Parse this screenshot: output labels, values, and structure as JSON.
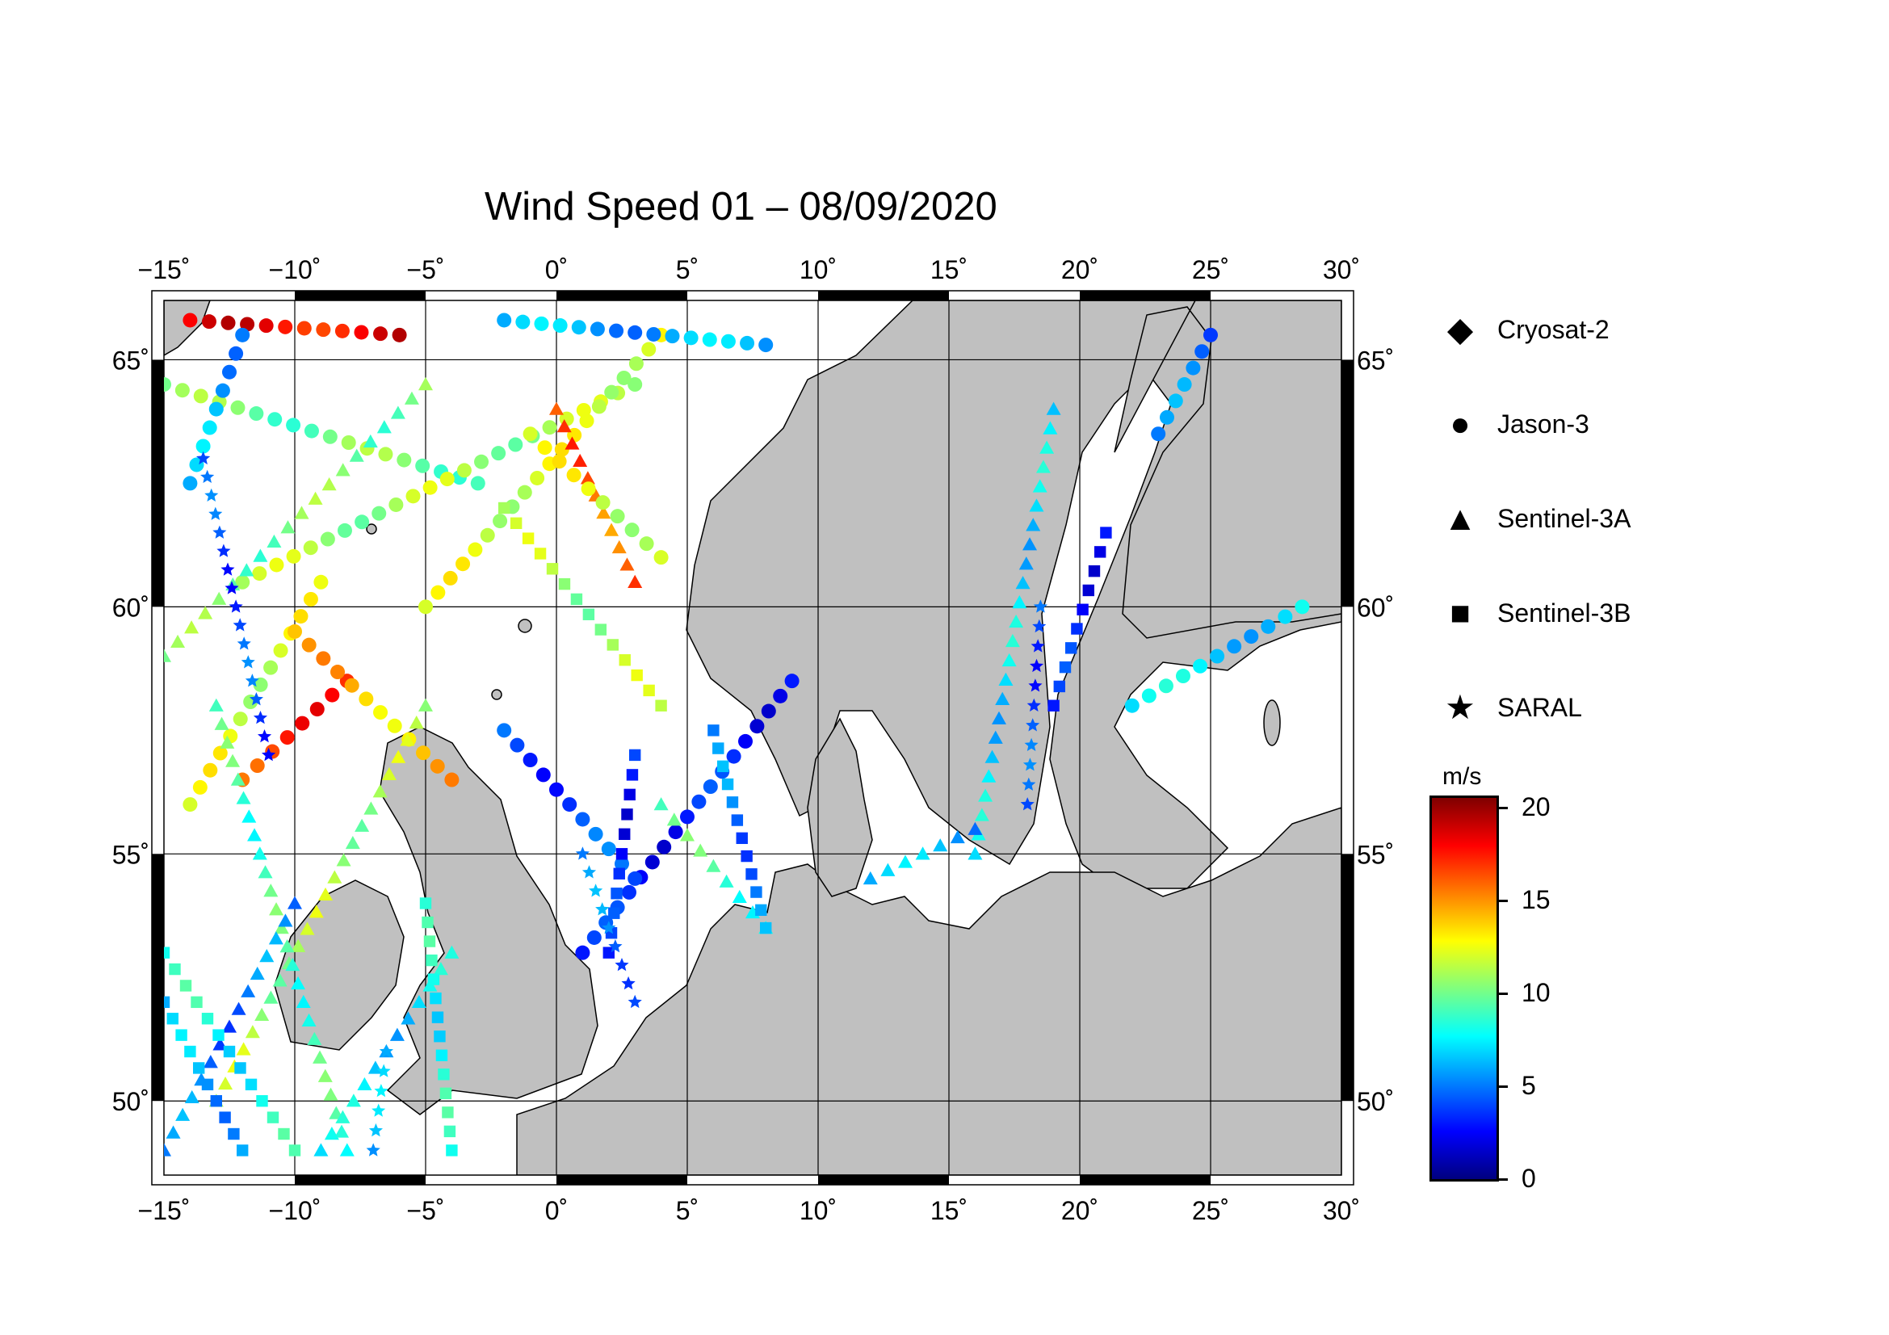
{
  "title": "Wind Speed 01 – 08/09/2020",
  "map": {
    "lon_ticks": [
      "−15˚",
      "−10˚",
      "−5˚",
      "0˚",
      "5˚",
      "10˚",
      "15˚",
      "20˚",
      "25˚",
      "30˚"
    ],
    "lat_ticks": [
      "50˚",
      "55˚",
      "60˚",
      "65˚"
    ],
    "lon_range": [
      -15,
      30
    ],
    "lat_range": [
      48.5,
      66.2
    ],
    "land_color": "#c0c0c0",
    "sea_color": "#ffffff",
    "grid": true
  },
  "legend": {
    "items": [
      {
        "label": "Cryosat-2",
        "icon": "diamond-icon"
      },
      {
        "label": "Jason-3",
        "icon": "circle-icon"
      },
      {
        "label": "Sentinel-3A",
        "icon": "triangle-icon"
      },
      {
        "label": "Sentinel-3B",
        "icon": "square-icon"
      },
      {
        "label": "SARAL",
        "icon": "star-icon"
      }
    ]
  },
  "colorbar": {
    "unit": "m/s",
    "ticks": [
      "20",
      "15",
      "10",
      "5",
      "0"
    ],
    "range": [
      0,
      20.5
    ],
    "colors": [
      "#00007f",
      "#0000ff",
      "#007fff",
      "#00ffff",
      "#7fff7f",
      "#ffff00",
      "#ff7f00",
      "#ff0000",
      "#7f0000"
    ]
  },
  "tracks": [
    {
      "sat": "Jason-3",
      "from": [
        -14,
        65.8
      ],
      "to": [
        -6,
        65.5
      ],
      "speed": 18
    },
    {
      "sat": "Jason-3",
      "from": [
        -8,
        58.5
      ],
      "to": [
        -12,
        56.5
      ],
      "speed": 17
    },
    {
      "sat": "Jason-3",
      "from": [
        -15,
        64.5
      ],
      "to": [
        -3,
        62.5
      ],
      "speed": 10
    },
    {
      "sat": "Jason-3",
      "from": [
        -12,
        60.5
      ],
      "to": [
        3,
        64.5
      ],
      "speed": 11
    },
    {
      "sat": "Jason-3",
      "from": [
        -5,
        60
      ],
      "to": [
        4,
        65.5
      ],
      "speed": 12
    },
    {
      "sat": "Jason-3",
      "from": [
        1,
        53
      ],
      "to": [
        9,
        58.5
      ],
      "speed": 3
    },
    {
      "sat": "Jason-3",
      "from": [
        3,
        54.5
      ],
      "to": [
        -2,
        57.5
      ],
      "speed": 4
    },
    {
      "sat": "Jason-3",
      "from": [
        -14,
        62.5
      ],
      "to": [
        -12,
        65.5
      ],
      "speed": 6
    },
    {
      "sat": "Jason-3",
      "from": [
        22,
        58
      ],
      "to": [
        28.5,
        60
      ],
      "speed": 7
    },
    {
      "sat": "Jason-3",
      "from": [
        23,
        63.5
      ],
      "to": [
        25,
        65.5
      ],
      "speed": 5
    },
    {
      "sat": "Jason-3",
      "from": [
        -2,
        65.8
      ],
      "to": [
        8,
        65.3
      ],
      "speed": 6
    },
    {
      "sat": "Jason-3",
      "from": [
        -14,
        56
      ],
      "to": [
        -9,
        60.5
      ],
      "speed": 12
    },
    {
      "sat": "Jason-3",
      "from": [
        -10,
        59.5
      ],
      "to": [
        -4,
        56.5
      ],
      "speed": 14
    },
    {
      "sat": "Sentinel-3A",
      "from": [
        -15,
        59
      ],
      "to": [
        -5,
        64.5
      ],
      "speed": 10
    },
    {
      "sat": "Sentinel-3A",
      "from": [
        0,
        64
      ],
      "to": [
        3,
        60.5
      ],
      "speed": 16
    },
    {
      "sat": "Sentinel-3A",
      "from": [
        -13,
        50
      ],
      "to": [
        -5,
        58
      ],
      "speed": 11
    },
    {
      "sat": "Sentinel-3A",
      "from": [
        -13,
        58
      ],
      "to": [
        -8,
        49
      ],
      "speed": 9
    },
    {
      "sat": "Sentinel-3A",
      "from": [
        16,
        55
      ],
      "to": [
        19,
        64
      ],
      "speed": 7
    },
    {
      "sat": "Sentinel-3A",
      "from": [
        -15,
        49
      ],
      "to": [
        -10,
        54
      ],
      "speed": 5
    },
    {
      "sat": "Sentinel-3A",
      "from": [
        -9,
        49
      ],
      "to": [
        -4,
        53
      ],
      "speed": 7
    },
    {
      "sat": "Sentinel-3B",
      "from": [
        -15,
        53
      ],
      "to": [
        -10,
        49
      ],
      "speed": 8
    },
    {
      "sat": "Sentinel-3B",
      "from": [
        2,
        53
      ],
      "to": [
        3,
        57
      ],
      "speed": 3
    },
    {
      "sat": "Sentinel-3B",
      "from": [
        -4,
        49
      ],
      "to": [
        -5,
        54
      ],
      "speed": 8
    },
    {
      "sat": "Sentinel-3B",
      "from": [
        -15,
        52
      ],
      "to": [
        -12,
        49
      ],
      "speed": 6
    },
    {
      "sat": "Sentinel-3B",
      "from": [
        -2,
        62
      ],
      "to": [
        4,
        58
      ],
      "speed": 11
    },
    {
      "sat": "Sentinel-3B",
      "from": [
        19,
        58
      ],
      "to": [
        21,
        61.5
      ],
      "speed": 3
    },
    {
      "sat": "SARAL",
      "from": [
        -13.5,
        63
      ],
      "to": [
        -11,
        57
      ],
      "speed": 4
    },
    {
      "sat": "SARAL",
      "from": [
        1,
        55
      ],
      "to": [
        3,
        52
      ],
      "speed": 5
    },
    {
      "sat": "SARAL",
      "from": [
        -6.5,
        51
      ],
      "to": [
        -7,
        49
      ],
      "speed": 6
    },
    {
      "sat": "SARAL",
      "from": [
        18,
        56
      ],
      "to": [
        18.5,
        60
      ],
      "speed": 4
    },
    {
      "sat": "Sentinel-3A",
      "from": [
        4,
        56
      ],
      "to": [
        8,
        53.5
      ],
      "speed": 9
    },
    {
      "sat": "Sentinel-3A",
      "from": [
        12,
        54.5
      ],
      "to": [
        16,
        55.5
      ],
      "speed": 6
    },
    {
      "sat": "Sentinel-3B",
      "from": [
        6,
        57.5
      ],
      "to": [
        8,
        53.5
      ],
      "speed": 5
    },
    {
      "sat": "Jason-3",
      "from": [
        -1,
        63.5
      ],
      "to": [
        4,
        61
      ],
      "speed": 12
    }
  ]
}
